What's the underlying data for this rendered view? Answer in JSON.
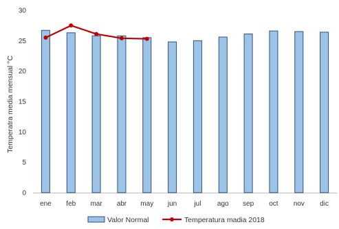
{
  "chart_data": {
    "type": "bar",
    "title": "",
    "xlabel": "",
    "ylabel": "Temperatra media mensual °C",
    "ylim": [
      0,
      30
    ],
    "yticks": [
      0,
      5,
      10,
      15,
      20,
      25,
      30
    ],
    "grid": false,
    "legend_position": "bottom",
    "categories": [
      "ene",
      "feb",
      "mar",
      "abr",
      "may",
      "jun",
      "jul",
      "ago",
      "sep",
      "oct",
      "nov",
      "dic"
    ],
    "series": [
      {
        "name": "Valor Normal",
        "kind": "bar",
        "color": "#9dc3e6",
        "edge_color": "#2f4f7f",
        "values": [
          26.7,
          26.3,
          25.8,
          25.8,
          25.5,
          24.8,
          25.0,
          25.6,
          26.1,
          26.6,
          26.5,
          26.4
        ]
      },
      {
        "name": "Temperatura madia 2018",
        "kind": "line",
        "color": "#c00000",
        "values": [
          25.5,
          27.5,
          26.1,
          25.4,
          25.3,
          null,
          null,
          null,
          null,
          null,
          null,
          null
        ]
      }
    ]
  }
}
